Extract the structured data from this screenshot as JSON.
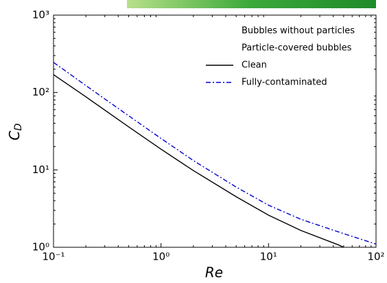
{
  "chart_data": {
    "type": "line",
    "xlabel": "Re",
    "ylabel": "C",
    "ylabel_sub": "D",
    "log_x": true,
    "log_y": true,
    "xlim": [
      0.1,
      100
    ],
    "ylim": [
      1,
      1000
    ],
    "xticks": [
      {
        "value": 0.1,
        "label": "10⁻¹"
      },
      {
        "value": 1,
        "label": "10⁰"
      },
      {
        "value": 10,
        "label": "10¹"
      },
      {
        "value": 100,
        "label": "10²"
      }
    ],
    "yticks": [
      {
        "value": 1,
        "label": "10⁰"
      },
      {
        "value": 10,
        "label": "10¹"
      },
      {
        "value": 100,
        "label": "10²"
      },
      {
        "value": 1000,
        "label": "10³"
      }
    ],
    "legend_headers": [
      "Bubbles without particles",
      "Particle-covered bubbles"
    ],
    "series": [
      {
        "name": "Clean",
        "color": "#000000",
        "dash": "solid",
        "x": [
          0.1,
          0.2,
          0.5,
          1,
          2,
          5,
          10,
          20,
          45,
          50
        ],
        "values": [
          170,
          88,
          36,
          18.5,
          9.8,
          4.5,
          2.6,
          1.65,
          1.07,
          1.0
        ]
      },
      {
        "name": "Fully-contaminated",
        "color": "#0000cc",
        "dash": "dashdot",
        "x": [
          0.1,
          0.2,
          0.5,
          1,
          2,
          5,
          10,
          20,
          50,
          100
        ],
        "values": [
          245,
          123,
          50,
          25.5,
          13.2,
          6.0,
          3.5,
          2.3,
          1.5,
          1.1
        ]
      }
    ]
  }
}
